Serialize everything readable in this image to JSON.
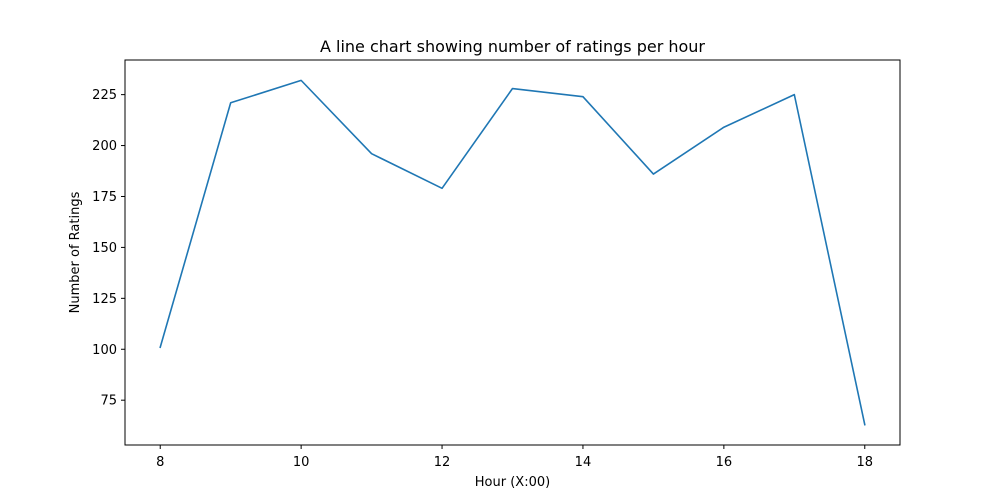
{
  "chart_data": {
    "type": "line",
    "title": "A line chart showing number of ratings per hour",
    "xlabel": "Hour (X:00)",
    "ylabel": "Number of Ratings",
    "x": [
      8,
      9,
      10,
      11,
      12,
      13,
      14,
      15,
      16,
      17,
      18
    ],
    "series": [
      {
        "values": [
          101,
          221,
          232,
          196,
          179,
          228,
          224,
          186,
          209,
          225,
          63
        ],
        "color": "#1f77b4"
      }
    ],
    "xlim": [
      7.5,
      18.5
    ],
    "ylim": [
      53,
      242
    ],
    "xticks": [
      8,
      10,
      12,
      14,
      16,
      18
    ],
    "yticks": [
      75,
      100,
      125,
      150,
      175,
      200,
      225
    ],
    "grid": false,
    "legend": "none"
  }
}
